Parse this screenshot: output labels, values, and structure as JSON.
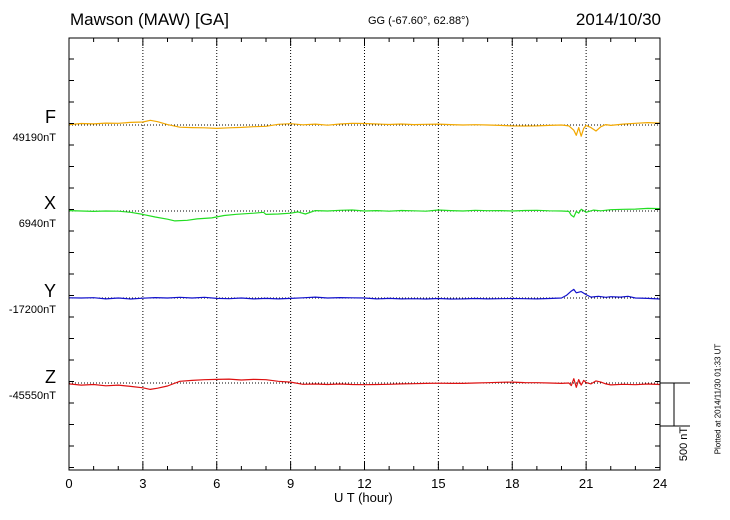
{
  "header": {
    "station": "Mawson (MAW)  [GA]",
    "coords": "GG (-67.60°,  62.88°)",
    "date": "2014/10/30"
  },
  "footer": {
    "plotted": "Plotted at 2014/11/30 01:33 UT"
  },
  "chart_data": {
    "type": "line",
    "xlabel": "U T (hour)",
    "xlim": [
      0,
      24
    ],
    "xticks": [
      0,
      3,
      6,
      9,
      12,
      15,
      18,
      21,
      24
    ],
    "xtick_labels": [
      "0",
      "3",
      "6",
      "9",
      "12",
      "15",
      "18",
      "21",
      "24"
    ],
    "grid": true,
    "scale_bar": {
      "value_nT": 500,
      "label": "500 nT"
    },
    "series": [
      {
        "name": "F",
        "baseline_label": "49190nT",
        "baseline_nT": 49190,
        "color": "#f2a800",
        "points": [
          [
            0,
            49195
          ],
          [
            0.5,
            49208
          ],
          [
            1,
            49203
          ],
          [
            1.5,
            49212
          ],
          [
            2,
            49210
          ],
          [
            2.5,
            49220
          ],
          [
            3,
            49225
          ],
          [
            3.3,
            49245
          ],
          [
            3.6,
            49228
          ],
          [
            4,
            49195
          ],
          [
            4.5,
            49165
          ],
          [
            5,
            49160
          ],
          [
            5.5,
            49158
          ],
          [
            6,
            49150
          ],
          [
            6.5,
            49158
          ],
          [
            7,
            49162
          ],
          [
            7.5,
            49170
          ],
          [
            8,
            49175
          ],
          [
            8.5,
            49198
          ],
          [
            9,
            49205
          ],
          [
            9.5,
            49192
          ],
          [
            10,
            49200
          ],
          [
            10.5,
            49188
          ],
          [
            11,
            49202
          ],
          [
            11.5,
            49210
          ],
          [
            12,
            49207
          ],
          [
            12.5,
            49202
          ],
          [
            13,
            49196
          ],
          [
            13.5,
            49202
          ],
          [
            14,
            49195
          ],
          [
            14.5,
            49198
          ],
          [
            15,
            49200
          ],
          [
            15.5,
            49195
          ],
          [
            16,
            49190
          ],
          [
            16.5,
            49193
          ],
          [
            17,
            49190
          ],
          [
            17.5,
            49185
          ],
          [
            18,
            49180
          ],
          [
            18.5,
            49178
          ],
          [
            19,
            49180
          ],
          [
            19.5,
            49185
          ],
          [
            20,
            49190
          ],
          [
            20.3,
            49180
          ],
          [
            20.5,
            49130
          ],
          [
            20.6,
            49070
          ],
          [
            20.7,
            49160
          ],
          [
            20.8,
            49060
          ],
          [
            20.9,
            49150
          ],
          [
            21,
            49185
          ],
          [
            21.2,
            49160
          ],
          [
            21.4,
            49120
          ],
          [
            21.6,
            49170
          ],
          [
            21.8,
            49195
          ],
          [
            22,
            49185
          ],
          [
            22.5,
            49200
          ],
          [
            23,
            49210
          ],
          [
            23.5,
            49218
          ],
          [
            24,
            49212
          ]
        ]
      },
      {
        "name": "X",
        "baseline_label": "6940nT",
        "baseline_nT": 6940,
        "color": "#22dd22",
        "points": [
          [
            0,
            6945
          ],
          [
            0.5,
            6940
          ],
          [
            1,
            6935
          ],
          [
            1.5,
            6940
          ],
          [
            2,
            6938
          ],
          [
            2.5,
            6925
          ],
          [
            3,
            6900
          ],
          [
            3.5,
            6870
          ],
          [
            4,
            6845
          ],
          [
            4.3,
            6825
          ],
          [
            4.8,
            6832
          ],
          [
            5.2,
            6848
          ],
          [
            5.8,
            6860
          ],
          [
            6.3,
            6888
          ],
          [
            6.8,
            6902
          ],
          [
            7.5,
            6915
          ],
          [
            7.9,
            6925
          ],
          [
            8,
            6900
          ],
          [
            8.5,
            6905
          ],
          [
            9,
            6915
          ],
          [
            9.3,
            6930
          ],
          [
            9.6,
            6905
          ],
          [
            10,
            6945
          ],
          [
            10.5,
            6940
          ],
          [
            11,
            6948
          ],
          [
            11.5,
            6952
          ],
          [
            12,
            6940
          ],
          [
            12.5,
            6945
          ],
          [
            13,
            6938
          ],
          [
            13.5,
            6946
          ],
          [
            14,
            6942
          ],
          [
            14.5,
            6938
          ],
          [
            15,
            6952
          ],
          [
            15.5,
            6945
          ],
          [
            16,
            6940
          ],
          [
            16.5,
            6948
          ],
          [
            17,
            6943
          ],
          [
            17.5,
            6945
          ],
          [
            18,
            6940
          ],
          [
            18.5,
            6946
          ],
          [
            19,
            6948
          ],
          [
            19.5,
            6942
          ],
          [
            20,
            6940
          ],
          [
            20.3,
            6935
          ],
          [
            20.4,
            6890
          ],
          [
            20.5,
            6870
          ],
          [
            20.6,
            6935
          ],
          [
            20.7,
            6915
          ],
          [
            20.8,
            6960
          ],
          [
            21,
            6925
          ],
          [
            21.3,
            6950
          ],
          [
            21.6,
            6942
          ],
          [
            22,
            6955
          ],
          [
            22.5,
            6960
          ],
          [
            23,
            6962
          ],
          [
            23.5,
            6970
          ],
          [
            24,
            6968
          ]
        ]
      },
      {
        "name": "Y",
        "baseline_label": "-17200nT",
        "baseline_nT": -17200,
        "color": "#1010cc",
        "points": [
          [
            0,
            -17198
          ],
          [
            0.5,
            -17200
          ],
          [
            1,
            -17196
          ],
          [
            1.5,
            -17210
          ],
          [
            2,
            -17200
          ],
          [
            2.5,
            -17212
          ],
          [
            3,
            -17202
          ],
          [
            3.5,
            -17195
          ],
          [
            4,
            -17200
          ],
          [
            4.5,
            -17192
          ],
          [
            5,
            -17200
          ],
          [
            5.5,
            -17192
          ],
          [
            6,
            -17205
          ],
          [
            6.5,
            -17208
          ],
          [
            7,
            -17200
          ],
          [
            7.5,
            -17210
          ],
          [
            8,
            -17205
          ],
          [
            8.5,
            -17210
          ],
          [
            9,
            -17205
          ],
          [
            9.5,
            -17198
          ],
          [
            10,
            -17190
          ],
          [
            10.5,
            -17200
          ],
          [
            11,
            -17195
          ],
          [
            11.5,
            -17198
          ],
          [
            12,
            -17200
          ],
          [
            12.5,
            -17210
          ],
          [
            13,
            -17205
          ],
          [
            13.5,
            -17210
          ],
          [
            14,
            -17208
          ],
          [
            14.5,
            -17212
          ],
          [
            15,
            -17206
          ],
          [
            15.5,
            -17212
          ],
          [
            16,
            -17210
          ],
          [
            16.5,
            -17206
          ],
          [
            17,
            -17210
          ],
          [
            17.5,
            -17208
          ],
          [
            18,
            -17206
          ],
          [
            18.5,
            -17208
          ],
          [
            19,
            -17210
          ],
          [
            19.5,
            -17206
          ],
          [
            20,
            -17200
          ],
          [
            20.2,
            -17170
          ],
          [
            20.4,
            -17120
          ],
          [
            20.5,
            -17100
          ],
          [
            20.6,
            -17140
          ],
          [
            20.8,
            -17125
          ],
          [
            21,
            -17160
          ],
          [
            21.2,
            -17190
          ],
          [
            21.5,
            -17180
          ],
          [
            21.8,
            -17192
          ],
          [
            22,
            -17185
          ],
          [
            22.4,
            -17190
          ],
          [
            22.7,
            -17180
          ],
          [
            23,
            -17200
          ],
          [
            23.5,
            -17205
          ],
          [
            24,
            -17212
          ]
        ]
      },
      {
        "name": "Z",
        "baseline_label": "-45550nT",
        "baseline_nT": -45550,
        "color": "#dd1010",
        "points": [
          [
            0,
            -45560
          ],
          [
            0.5,
            -45575
          ],
          [
            1,
            -45568
          ],
          [
            1.5,
            -45582
          ],
          [
            2,
            -45574
          ],
          [
            2.5,
            -45590
          ],
          [
            3,
            -45606
          ],
          [
            3.3,
            -45625
          ],
          [
            3.6,
            -45610
          ],
          [
            4,
            -45585
          ],
          [
            4.5,
            -45530
          ],
          [
            5,
            -45520
          ],
          [
            5.5,
            -45512
          ],
          [
            6,
            -45508
          ],
          [
            6.5,
            -45505
          ],
          [
            7,
            -45515
          ],
          [
            7.5,
            -45508
          ],
          [
            8,
            -45512
          ],
          [
            8.5,
            -45530
          ],
          [
            9,
            -45540
          ],
          [
            9.5,
            -45565
          ],
          [
            10,
            -45562
          ],
          [
            10.5,
            -45568
          ],
          [
            11,
            -45562
          ],
          [
            11.5,
            -45568
          ],
          [
            12,
            -45570
          ],
          [
            12.5,
            -45568
          ],
          [
            13,
            -45565
          ],
          [
            13.5,
            -45560
          ],
          [
            14,
            -45558
          ],
          [
            14.5,
            -45555
          ],
          [
            15,
            -45552
          ],
          [
            15.5,
            -45555
          ],
          [
            16,
            -45555
          ],
          [
            16.5,
            -45550
          ],
          [
            17,
            -45546
          ],
          [
            17.5,
            -45542
          ],
          [
            18,
            -45540
          ],
          [
            18.5,
            -45545
          ],
          [
            19,
            -45546
          ],
          [
            19.5,
            -45550
          ],
          [
            20,
            -45555
          ],
          [
            20.3,
            -45550
          ],
          [
            20.4,
            -45580
          ],
          [
            20.5,
            -45500
          ],
          [
            20.6,
            -45600
          ],
          [
            20.7,
            -45510
          ],
          [
            20.8,
            -45575
          ],
          [
            20.9,
            -45520
          ],
          [
            21,
            -45545
          ],
          [
            21.2,
            -45560
          ],
          [
            21.4,
            -45525
          ],
          [
            21.6,
            -45540
          ],
          [
            21.8,
            -45560
          ],
          [
            22,
            -45572
          ],
          [
            22.5,
            -45565
          ],
          [
            23,
            -45570
          ],
          [
            23.5,
            -45562
          ],
          [
            24,
            -45568
          ]
        ]
      }
    ]
  }
}
